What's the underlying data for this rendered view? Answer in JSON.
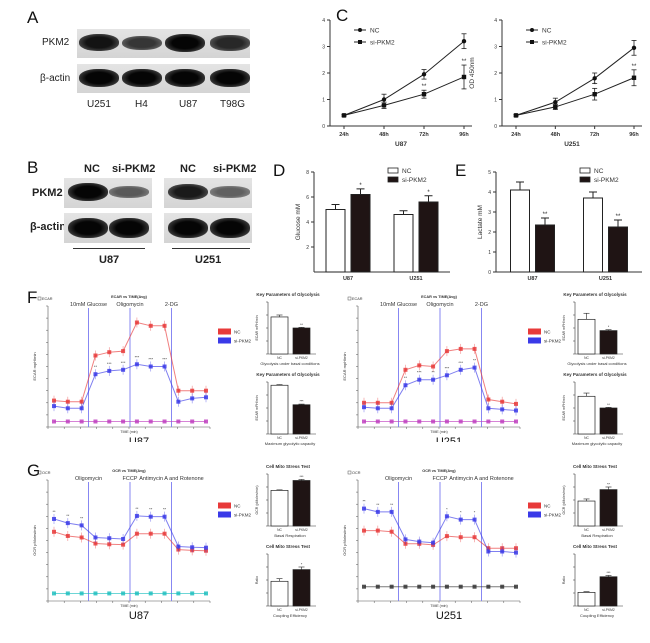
{
  "panels": {
    "A": {
      "letter": "A",
      "row_labels": [
        "PKM2",
        "β-actin"
      ],
      "lanes": [
        "U251",
        "H4",
        "U87",
        "T98G"
      ],
      "band_intensity": {
        "PKM2": [
          0.9,
          0.65,
          1.0,
          0.75
        ],
        "β-actin": [
          1.0,
          1.0,
          1.0,
          1.0
        ]
      }
    },
    "B": {
      "letter": "B",
      "row_labels": [
        "PKM2",
        "β-actin"
      ],
      "groups": [
        {
          "cell_line": "U87",
          "lanes": [
            "NC",
            "si-PKM2"
          ],
          "band_intensity": {
            "PKM2": [
              1.0,
              0.4
            ],
            "β-actin": [
              1.0,
              1.0
            ]
          }
        },
        {
          "cell_line": "U251",
          "lanes": [
            "NC",
            "si-PKM2"
          ],
          "band_intensity": {
            "PKM2": [
              0.85,
              0.35
            ],
            "β-actin": [
              1.0,
              1.0
            ]
          }
        }
      ]
    },
    "C": {
      "letter": "C"
    },
    "D": {
      "letter": "D"
    },
    "E": {
      "letter": "E"
    },
    "F": {
      "letter": "F"
    },
    "G": {
      "letter": "G"
    }
  },
  "chart_data": [
    {
      "id": "C-U87",
      "panel": "C",
      "type": "line",
      "title": "",
      "xlabel": "U87",
      "ylabel": "OD 450nm",
      "categories": [
        "24h",
        "48h",
        "72h",
        "96h"
      ],
      "ylim": [
        0,
        4
      ],
      "yticks": [
        0,
        1,
        2,
        3,
        4
      ],
      "legend": "top-left",
      "series": [
        {
          "name": "NC",
          "values": [
            0.4,
            1.0,
            1.95,
            3.2
          ],
          "errors": [
            0.03,
            0.2,
            0.18,
            0.28
          ],
          "marker": "circle"
        },
        {
          "name": "si-PKM2",
          "values": [
            0.4,
            0.78,
            1.2,
            1.85
          ],
          "errors": [
            0.03,
            0.12,
            0.15,
            0.45
          ],
          "marker": "square",
          "annotations": [
            "",
            "",
            "**",
            "**"
          ]
        }
      ]
    },
    {
      "id": "C-U251",
      "panel": "C",
      "type": "line",
      "title": "",
      "xlabel": "U251",
      "ylabel": "OD 450nm",
      "categories": [
        "24h",
        "48h",
        "72h",
        "96h"
      ],
      "ylim": [
        0,
        4
      ],
      "yticks": [
        0,
        1,
        2,
        3,
        4
      ],
      "legend": "top-left",
      "series": [
        {
          "name": "NC",
          "values": [
            0.4,
            0.9,
            1.8,
            2.95
          ],
          "errors": [
            0.03,
            0.15,
            0.2,
            0.28
          ],
          "marker": "circle"
        },
        {
          "name": "si-PKM2",
          "values": [
            0.4,
            0.72,
            1.2,
            1.82
          ],
          "errors": [
            0.03,
            0.1,
            0.22,
            0.3
          ],
          "marker": "square",
          "annotations": [
            "",
            "",
            "*",
            "**"
          ]
        }
      ]
    },
    {
      "id": "D",
      "panel": "D",
      "type": "bar",
      "title": "",
      "xlabel": "",
      "ylabel": "Glucose mM",
      "categories": [
        "U87",
        "U251"
      ],
      "ylim": [
        0,
        8
      ],
      "yticks": [
        2,
        4,
        6,
        8
      ],
      "legend": "top-right",
      "series": [
        {
          "name": "NC",
          "values": [
            5.0,
            4.6
          ],
          "errors": [
            0.4,
            0.3
          ],
          "fill": "#ffffff"
        },
        {
          "name": "si-PKM2",
          "values": [
            6.2,
            5.6
          ],
          "errors": [
            0.45,
            0.5
          ],
          "fill": "#1f1414",
          "annotations": [
            "*",
            "*"
          ]
        }
      ]
    },
    {
      "id": "E",
      "panel": "E",
      "type": "bar",
      "title": "",
      "xlabel": "",
      "ylabel": "Lactate mM",
      "categories": [
        "U87",
        "U251"
      ],
      "ylim": [
        0,
        5
      ],
      "yticks": [
        0,
        1,
        2,
        3,
        4,
        5
      ],
      "legend": "top-right",
      "series": [
        {
          "name": "NC",
          "values": [
            4.1,
            3.7
          ],
          "errors": [
            0.4,
            0.3
          ],
          "fill": "#ffffff"
        },
        {
          "name": "si-PKM2",
          "values": [
            2.35,
            2.25
          ],
          "errors": [
            0.35,
            0.35
          ],
          "fill": "#1f1414",
          "annotations": [
            "**",
            "**"
          ]
        }
      ]
    },
    {
      "id": "F-U87-main",
      "panel": "F",
      "type": "line",
      "title": "ECAR vs TIME(Avg)",
      "corner_label": "ECAR",
      "xlabel": "TIME (min)",
      "ylabel": "ECAR mpH/min",
      "caption": "U87",
      "injections": [
        "10mM Glucose",
        "Oligomycin",
        "2-DG"
      ],
      "injection_after_point": [
        3,
        6,
        9
      ],
      "ylim": [
        0,
        110
      ],
      "legend": "right",
      "series": [
        {
          "name": "NC",
          "color": "#e83a3a",
          "values": [
            24,
            23,
            23,
            65,
            68,
            69,
            95,
            92,
            92,
            33,
            33,
            33
          ]
        },
        {
          "name": "si-PKM2",
          "color": "#3a3ae8",
          "values": [
            19,
            17,
            17,
            48,
            51,
            52,
            57,
            55,
            55,
            23,
            26,
            27
          ],
          "annotations": [
            "",
            "",
            "",
            "**",
            "***",
            "***",
            "***",
            "***",
            "***",
            "",
            "",
            ""
          ]
        },
        {
          "name": "background",
          "color": "#c040c0",
          "values": [
            5,
            5,
            5,
            5,
            5,
            5,
            5,
            5,
            5,
            5,
            5,
            5
          ]
        }
      ]
    },
    {
      "id": "F-U87-basal",
      "panel": "F",
      "type": "bar",
      "title": "Key Parameters of Glycolysis",
      "xlabel": "Glycolysis under basal conditions",
      "ylabel": "ECAR mPH/min",
      "categories": [
        "NC",
        "si-PKM2"
      ],
      "ylim": [
        0,
        80
      ],
      "values": [
        57,
        40
      ],
      "errors": [
        3,
        1
      ],
      "fills": [
        "#ffffff",
        "#1f1414"
      ],
      "annotations": [
        "",
        "**"
      ]
    },
    {
      "id": "F-U87-max",
      "panel": "F",
      "type": "bar",
      "title": "Key Parameters of Glycolysis",
      "xlabel": "Maximum glycolytic capacity",
      "ylabel": "ECAR mPH/min",
      "categories": [
        "NC",
        "si-PKM2"
      ],
      "ylim": [
        0,
        80
      ],
      "values": [
        75,
        45
      ],
      "errors": [
        1,
        1
      ],
      "fills": [
        "#ffffff",
        "#1f1414"
      ],
      "annotations": [
        "",
        "***"
      ]
    },
    {
      "id": "F-U251-main",
      "panel": "F",
      "type": "line",
      "title": "ECAR vs TIME(Avg)",
      "corner_label": "ECAR",
      "xlabel": "TIME (min)",
      "ylabel": "ECAR mpH/min",
      "caption": "U251",
      "injections": [
        "10mM Glucose",
        "Oligomycin",
        "2-DG"
      ],
      "injection_after_point": [
        3,
        6,
        9
      ],
      "ylim": [
        0,
        110
      ],
      "legend": "right",
      "series": [
        {
          "name": "NC",
          "color": "#e83a3a",
          "values": [
            22,
            22,
            22,
            52,
            56,
            55,
            69,
            71,
            71,
            25,
            23,
            21
          ]
        },
        {
          "name": "si-PKM2",
          "color": "#3a3ae8",
          "values": [
            18,
            17,
            17,
            38,
            43,
            43,
            47,
            52,
            54,
            17,
            16,
            15
          ],
          "annotations": [
            "",
            "",
            "",
            "**",
            "***",
            "**",
            "***",
            "***",
            "**",
            "",
            "",
            ""
          ]
        },
        {
          "name": "background",
          "color": "#c040c0",
          "values": [
            5,
            5,
            5,
            5,
            5,
            5,
            5,
            5,
            5,
            5,
            5,
            5
          ]
        }
      ]
    },
    {
      "id": "F-U251-basal",
      "panel": "F",
      "type": "bar",
      "title": "Key Parameters of Glycolysis",
      "xlabel": "Glycolysis under basal conditions",
      "ylabel": "ECAR mPH/min",
      "categories": [
        "NC",
        "si-PKM2"
      ],
      "ylim": [
        0,
        60
      ],
      "values": [
        40,
        27
      ],
      "errors": [
        7,
        1
      ],
      "fills": [
        "#ffffff",
        "#1f1414"
      ],
      "annotations": [
        "",
        "*"
      ]
    },
    {
      "id": "F-U251-max",
      "panel": "F",
      "type": "bar",
      "title": "Key Parameters of Glycolysis",
      "xlabel": "Maximum glycolytic capacity",
      "ylabel": "ECAR mPH/min",
      "categories": [
        "NC",
        "si-PKM2"
      ],
      "ylim": [
        0,
        80
      ],
      "values": [
        58,
        40
      ],
      "errors": [
        5,
        1
      ],
      "fills": [
        "#ffffff",
        "#1f1414"
      ],
      "annotations": [
        "",
        "**"
      ]
    },
    {
      "id": "G-U87-main",
      "panel": "G",
      "type": "line",
      "title": "OCR vs TIME(Avg)",
      "corner_label": "OCR",
      "xlabel": "TIME (min)",
      "ylabel": "OCR pMoles/min",
      "caption": "U87",
      "injections": [
        "Oligomycin",
        "FCCP",
        "Antimycin A and Rotenone"
      ],
      "injection_after_point": [
        3,
        6,
        9
      ],
      "ylim": [
        -20,
        300
      ],
      "legend": "right",
      "series": [
        {
          "name": "NC",
          "color": "#e83a3a",
          "values": [
            163,
            152,
            148,
            132,
            130,
            129,
            158,
            158,
            158,
            116,
            114,
            113
          ]
        },
        {
          "name": "si-PKM2",
          "color": "#3a3ae8",
          "values": [
            197,
            186,
            180,
            148,
            146,
            144,
            205,
            203,
            203,
            124,
            122,
            121
          ],
          "annotations": [
            "**",
            "**",
            "**",
            "",
            "",
            "",
            "**",
            "**",
            "**",
            "",
            "",
            ""
          ]
        },
        {
          "name": "background",
          "color": "#20c0c0",
          "values": [
            0,
            0,
            0,
            0,
            0,
            0,
            0,
            0,
            0,
            0,
            0,
            0
          ]
        }
      ]
    },
    {
      "id": "G-U87-basal",
      "panel": "G",
      "type": "bar",
      "title": "Cell Mito Stress Test",
      "xlabel": "Basal Respiration",
      "ylabel": "OCR (pMoles/min)",
      "categories": [
        "NC",
        "si-PKM2"
      ],
      "ylim": [
        0,
        200
      ],
      "values": [
        137,
        175
      ],
      "errors": [
        2,
        4
      ],
      "fills": [
        "#ffffff",
        "#1f1414"
      ],
      "annotations": [
        "",
        "***"
      ]
    },
    {
      "id": "G-U87-coupling",
      "panel": "G",
      "type": "bar",
      "title": "Cell Mito Stress Test",
      "xlabel": "Coupling Efficiency",
      "ylabel": "Ratio",
      "categories": [
        "NC",
        "si-PKM2"
      ],
      "ylim": [
        0,
        0.4
      ],
      "values": [
        0.19,
        0.28
      ],
      "errors": [
        0.02,
        0.02
      ],
      "fills": [
        "#ffffff",
        "#1f1414"
      ],
      "annotations": [
        "",
        "*"
      ]
    },
    {
      "id": "G-U251-main",
      "panel": "G",
      "type": "line",
      "title": "OCR vs TIME(Avg)",
      "corner_label": "OCR",
      "xlabel": "TIME (min)",
      "ylabel": "OCR pMoles/min",
      "caption": "U251",
      "injections": [
        "Oligomycin",
        "FCCP",
        "Antimycin A and Rotenone"
      ],
      "injection_after_point": [
        3,
        6,
        9
      ],
      "ylim": [
        -10,
        100
      ],
      "legend": "right",
      "series": [
        {
          "name": "NC",
          "color": "#e83a3a",
          "values": [
            54,
            54,
            53,
            42,
            42,
            41,
            49,
            48,
            48,
            38,
            38,
            38
          ]
        },
        {
          "name": "si-PKM2",
          "color": "#3a3ae8",
          "values": [
            74,
            71,
            71,
            46,
            44,
            43,
            67,
            64,
            64,
            35,
            35,
            34
          ],
          "annotations": [
            "**",
            "**",
            "**",
            "",
            "",
            "",
            "*",
            "*",
            "*",
            "",
            "",
            ""
          ]
        },
        {
          "name": "background",
          "color": "#333333",
          "values": [
            3,
            3,
            3,
            3,
            3,
            3,
            3,
            3,
            3,
            3,
            3,
            3
          ]
        }
      ]
    },
    {
      "id": "G-U251-basal",
      "panel": "G",
      "type": "bar",
      "title": "Cell Mito Stress Test",
      "xlabel": "Basal Respiration",
      "ylabel": "OCR (pMoles/min)",
      "categories": [
        "NC",
        "si-PKM2"
      ],
      "ylim": [
        0,
        100
      ],
      "values": [
        48,
        70
      ],
      "errors": [
        4,
        5
      ],
      "fills": [
        "#ffffff",
        "#1f1414"
      ],
      "annotations": [
        "",
        "**"
      ]
    },
    {
      "id": "G-U251-coupling",
      "panel": "G",
      "type": "bar",
      "title": "Cell Mito Stress Test",
      "xlabel": "Coupling Efficiency",
      "ylabel": "Ratio",
      "categories": [
        "NC",
        "si-PKM2"
      ],
      "ylim": [
        0,
        0.8
      ],
      "values": [
        0.21,
        0.45
      ],
      "errors": [
        0.01,
        0.02
      ],
      "fills": [
        "#ffffff",
        "#1f1414"
      ],
      "annotations": [
        "",
        "***"
      ]
    }
  ]
}
